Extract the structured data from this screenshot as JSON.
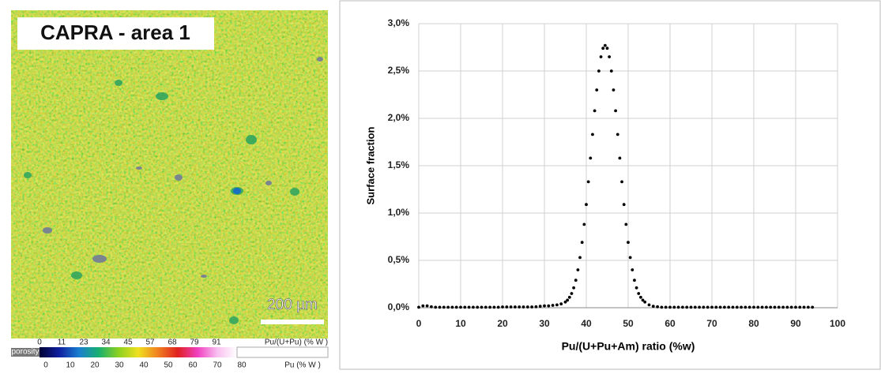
{
  "map": {
    "title": "CAPRA - area 1",
    "scale_bar": "200 µm",
    "colorbar_top": {
      "labels": [
        "0",
        "11",
        "23",
        "34",
        "45",
        "57",
        "68",
        "79",
        "91"
      ],
      "unit": "Pu/(U+Pu) (% W )"
    },
    "colorbar_bottom": {
      "porosity": "porosity",
      "labels": [
        "0",
        "10",
        "20",
        "30",
        "40",
        "50",
        "60",
        "70",
        "80"
      ],
      "unit": "Pu (% W )"
    }
  },
  "chart_data": {
    "type": "scatter",
    "color": "#000000",
    "grid": true,
    "xlabel": "Pu/(U+Pu+Am) ratio (%w)",
    "ylabel": "Surface fraction",
    "xlim": [
      0,
      100
    ],
    "xticks": [
      0,
      10,
      20,
      30,
      40,
      50,
      60,
      70,
      80,
      90,
      100
    ],
    "ylim": [
      0,
      3
    ],
    "yticks": [
      {
        "value": 0,
        "label": "0,0%"
      },
      {
        "value": 0.5,
        "label": "0,5%"
      },
      {
        "value": 1,
        "label": "1,0%"
      },
      {
        "value": 1.5,
        "label": "1,5%"
      },
      {
        "value": 2,
        "label": "2,0%"
      },
      {
        "value": 2.5,
        "label": "2,5%"
      },
      {
        "value": 3,
        "label": "3,0%"
      }
    ],
    "x": [
      0,
      1,
      2,
      3,
      4,
      5,
      6,
      7,
      8,
      9,
      10,
      11,
      12,
      13,
      14,
      15,
      16,
      17,
      18,
      19,
      20,
      21,
      22,
      23,
      24,
      25,
      26,
      27,
      28,
      29,
      30,
      31,
      32,
      33,
      34,
      35,
      35.5,
      36,
      36.5,
      37,
      37.5,
      38,
      38.5,
      39,
      39.5,
      40,
      40.5,
      41,
      41.5,
      42,
      42.5,
      43,
      43.5,
      44,
      44.5,
      45,
      45.5,
      46,
      46.5,
      47,
      47.5,
      48,
      48.5,
      49,
      49.5,
      50,
      50.5,
      51,
      51.5,
      52,
      52.5,
      53,
      53.5,
      54,
      55,
      56,
      57,
      58,
      59,
      60,
      61,
      62,
      63,
      64,
      65,
      66,
      67,
      68,
      69,
      70,
      71,
      72,
      73,
      74,
      75,
      76,
      77,
      78,
      79,
      80,
      81,
      82,
      83,
      84,
      85,
      86,
      87,
      88,
      89,
      90,
      91,
      92,
      93,
      94
    ],
    "values": [
      0.005,
      0.02,
      0.02,
      0.01,
      0.005,
      0.005,
      0.005,
      0.005,
      0.005,
      0.005,
      0.005,
      0.005,
      0.005,
      0.005,
      0.005,
      0.005,
      0.005,
      0.005,
      0.005,
      0.005,
      0.008,
      0.008,
      0.008,
      0.008,
      0.008,
      0.008,
      0.008,
      0.008,
      0.01,
      0.015,
      0.02,
      0.02,
      0.025,
      0.03,
      0.04,
      0.06,
      0.08,
      0.11,
      0.15,
      0.21,
      0.29,
      0.4,
      0.53,
      0.69,
      0.88,
      1.09,
      1.33,
      1.58,
      1.83,
      2.08,
      2.3,
      2.5,
      2.65,
      2.74,
      2.77,
      2.74,
      2.65,
      2.5,
      2.3,
      2.08,
      1.83,
      1.58,
      1.33,
      1.09,
      0.88,
      0.69,
      0.53,
      0.4,
      0.29,
      0.21,
      0.15,
      0.11,
      0.08,
      0.06,
      0.03,
      0.015,
      0.01,
      0.005,
      0.005,
      0.005,
      0.005,
      0.005,
      0.005,
      0.005,
      0.005,
      0.005,
      0.005,
      0.005,
      0.005,
      0.005,
      0.005,
      0.005,
      0.005,
      0.005,
      0.005,
      0.005,
      0.005,
      0.005,
      0.005,
      0.005,
      0.005,
      0.005,
      0.005,
      0.005,
      0.005,
      0.005,
      0.005,
      0.005,
      0.005,
      0.005,
      0.005,
      0.005,
      0.005,
      0.005
    ]
  }
}
